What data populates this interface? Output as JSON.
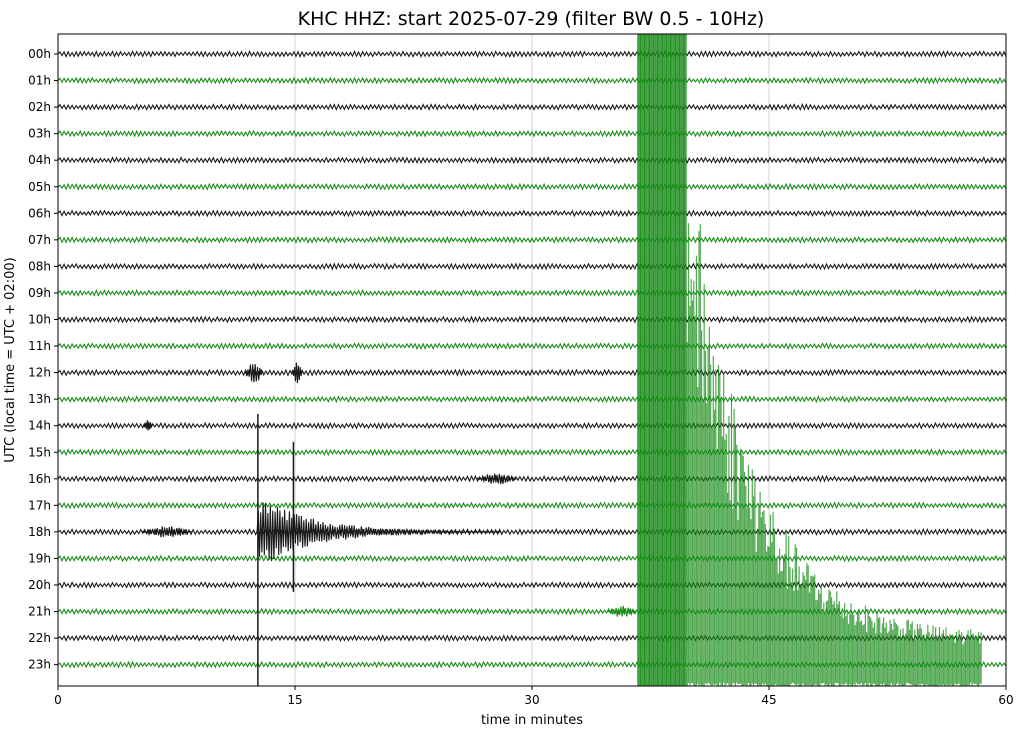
{
  "chart_data": {
    "type": "line",
    "title": "KHC HHZ: start 2025-07-29 (filter BW 0.5 - 10Hz)",
    "xlabel": "time in minutes",
    "ylabel": "UTC (local time = UTC + 02:00)",
    "xlim": [
      0,
      60
    ],
    "x_ticks": [
      0,
      15,
      30,
      45,
      60
    ],
    "x_tick_labels": [
      "0",
      "15",
      "30",
      "45",
      "60"
    ],
    "grid": "vertical",
    "trace_colors": [
      "#1a1a1a",
      "#1a8c1a"
    ],
    "rows": [
      {
        "label": "00h"
      },
      {
        "label": "01h"
      },
      {
        "label": "02h"
      },
      {
        "label": "03h"
      },
      {
        "label": "04h"
      },
      {
        "label": "05h"
      },
      {
        "label": "06h"
      },
      {
        "label": "07h"
      },
      {
        "label": "08h"
      },
      {
        "label": "09h"
      },
      {
        "label": "10h"
      },
      {
        "label": "11h"
      },
      {
        "label": "12h"
      },
      {
        "label": "13h"
      },
      {
        "label": "14h"
      },
      {
        "label": "15h"
      },
      {
        "label": "16h"
      },
      {
        "label": "17h"
      },
      {
        "label": "18h"
      },
      {
        "label": "19h"
      },
      {
        "label": "20h"
      },
      {
        "label": "21h"
      },
      {
        "label": "22h"
      },
      {
        "label": "23h"
      }
    ],
    "events": [
      {
        "row": "12h",
        "start_min": 11.8,
        "end_min": 13.0,
        "amplitude": "medium"
      },
      {
        "row": "12h",
        "start_min": 14.8,
        "end_min": 15.5,
        "amplitude": "medium"
      },
      {
        "row": "14h",
        "start_min": 5.4,
        "end_min": 6.0,
        "amplitude": "small"
      },
      {
        "row": "16h",
        "start_min": 26.5,
        "end_min": 29.0,
        "amplitude": "small"
      },
      {
        "row": "18h",
        "start_min": 5.3,
        "end_min": 8.5,
        "amplitude": "small"
      },
      {
        "row": "18h",
        "start_min": 12.6,
        "end_min": 28.0,
        "amplitude": "large"
      },
      {
        "row": "21h",
        "start_min": 34.8,
        "end_min": 36.6,
        "amplitude": "small"
      },
      {
        "row": "23h",
        "start_min": 36.7,
        "end_min": 58.5,
        "amplitude": "saturated"
      }
    ]
  }
}
